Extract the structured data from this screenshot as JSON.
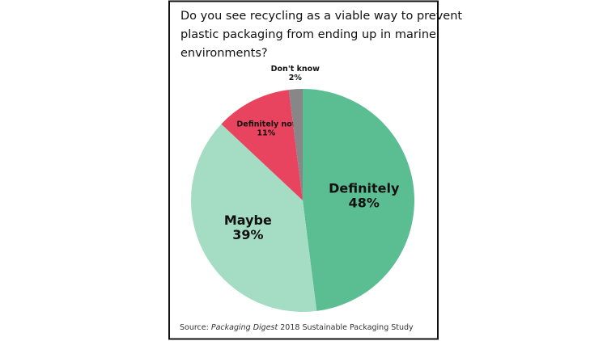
{
  "chart_data": {
    "type": "pie",
    "title": [
      "Do you see recycling as a viable way to prevent",
      "plastic packaging from ending up in marine",
      "environments?"
    ],
    "categories": [
      "Definitely",
      "Maybe",
      "Definitely not",
      "Don't know"
    ],
    "values": [
      48,
      39,
      11,
      2
    ],
    "value_labels": [
      "48%",
      "39%",
      "11%",
      "2%"
    ],
    "colors": [
      "#5bbd92",
      "#a4dcc4",
      "#e8445f",
      "#878787"
    ],
    "source": {
      "prefix": "Source:",
      "publication": "Packaging Digest",
      "rest": "2018 Sustainable Packaging Study"
    }
  }
}
